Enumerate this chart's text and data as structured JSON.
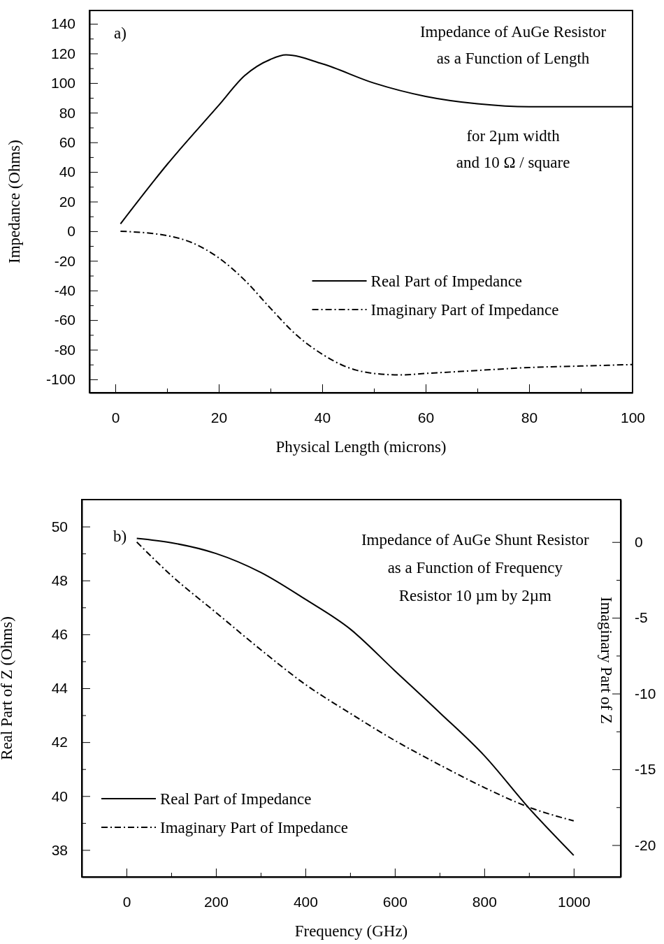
{
  "chart_data": [
    {
      "type": "line",
      "title": "Impedance of AuGe Resistor\nas a Function of Length",
      "xlabel": "Physical Length (microns)",
      "ylabel": "Impedance (Ohms)",
      "annotations": [
        "a)",
        "for 2µm width\nand 10 Ω / square"
      ],
      "xlim": [
        -5,
        100
      ],
      "ylim": [
        -109,
        149
      ],
      "xticks": [
        0,
        {
          "value": 10,
          "label": null
        },
        20,
        {
          "value": 30,
          "label": null
        },
        40,
        {
          "value": 50,
          "label": null
        },
        60,
        {
          "value": 70,
          "label": null
        },
        80,
        {
          "value": 90,
          "label": null
        },
        100
      ],
      "yticks": [
        -100,
        {
          "value": -90,
          "label": null
        },
        -80,
        {
          "value": -70,
          "label": null
        },
        -60,
        {
          "value": -50,
          "label": null
        },
        -40,
        {
          "value": -30,
          "label": null
        },
        -20,
        {
          "value": -10,
          "label": null
        },
        0,
        {
          "value": 10,
          "label": null
        },
        20,
        {
          "value": 30,
          "label": null
        },
        40,
        {
          "value": 50,
          "label": null
        },
        60,
        {
          "value": 70,
          "label": null
        },
        80,
        {
          "value": 90,
          "label": null
        },
        100,
        {
          "value": 110,
          "label": null
        },
        120,
        {
          "value": 130,
          "label": null
        },
        140
      ],
      "legend": "bottom right",
      "series": [
        {
          "name": "Real Part of Impedance",
          "color": "#000000",
          "line_style": "solid",
          "x": [
            1,
            10,
            20,
            25,
            30,
            33,
            40,
            50,
            60,
            70,
            80,
            90,
            100
          ],
          "values": [
            5,
            45,
            85,
            105,
            116,
            119,
            113,
            100,
            91,
            86,
            84,
            84,
            84
          ]
        },
        {
          "name": "Imaginary Part of Impedance",
          "color": "#000000",
          "line_style": "dashdot",
          "x": [
            1,
            10,
            15,
            20,
            25,
            30,
            35,
            40,
            45,
            50,
            55,
            60,
            70,
            80,
            90,
            100
          ],
          "values": [
            0,
            -3,
            -8,
            -18,
            -33,
            -52,
            -70,
            -83,
            -92,
            -96,
            -97,
            -96,
            -94,
            -92,
            -91,
            -90
          ]
        }
      ]
    },
    {
      "type": "line",
      "title": "Impedance of AuGe Shunt Resistor\nas a Function of Frequency\nResistor 10 µm by 2µm",
      "xlabel": "Frequency (GHz)",
      "ylabel": "Real Part of Z (Ohms)",
      "y2label": "Imaginary Part of Z",
      "annotations": [
        "b)"
      ],
      "xlim": [
        -100,
        1105
      ],
      "ylim": [
        37,
        51
      ],
      "y2lim": [
        -22.1,
        2.8
      ],
      "xticks": [
        0,
        {
          "value": 100,
          "label": null
        },
        200,
        {
          "value": 300,
          "label": null
        },
        400,
        {
          "value": 500,
          "label": null
        },
        600,
        {
          "value": 700,
          "label": null
        },
        800,
        {
          "value": 900,
          "label": null
        },
        1000
      ],
      "yticks": [
        38,
        {
          "value": 39,
          "label": null
        },
        40,
        {
          "value": 41,
          "label": null
        },
        42,
        {
          "value": 43,
          "label": null
        },
        44,
        {
          "value": 45,
          "label": null
        },
        46,
        {
          "value": 47,
          "label": null
        },
        48,
        {
          "value": 49,
          "label": null
        },
        50
      ],
      "y2ticks": [
        -20,
        {
          "value": -17.5,
          "label": null
        },
        -15,
        {
          "value": -12.5,
          "label": null
        },
        -10,
        {
          "value": -7.5,
          "label": null
        },
        -5,
        {
          "value": -2.5,
          "label": null
        },
        0
      ],
      "legend": "bottom left",
      "series": [
        {
          "name": "Real Part of Impedance",
          "color": "#000000",
          "line_style": "solid",
          "x": [
            23,
            100,
            200,
            300,
            400,
            500,
            600,
            700,
            800,
            900,
            1000
          ],
          "values": [
            49.56,
            49.4,
            49.0,
            48.3,
            47.3,
            46.2,
            44.65,
            43.1,
            41.5,
            39.55,
            37.8
          ]
        },
        {
          "name": "Imaginary Part of Impedance",
          "color": "#000000",
          "line_style": "dashdot",
          "axis": "y2",
          "x": [
            23,
            100,
            200,
            300,
            400,
            500,
            600,
            700,
            800,
            900,
            1000
          ],
          "values": [
            0,
            -2.2,
            -4.65,
            -7.1,
            -9.4,
            -11.3,
            -13.1,
            -14.7,
            -16.2,
            -17.5,
            -18.4
          ]
        }
      ]
    }
  ]
}
